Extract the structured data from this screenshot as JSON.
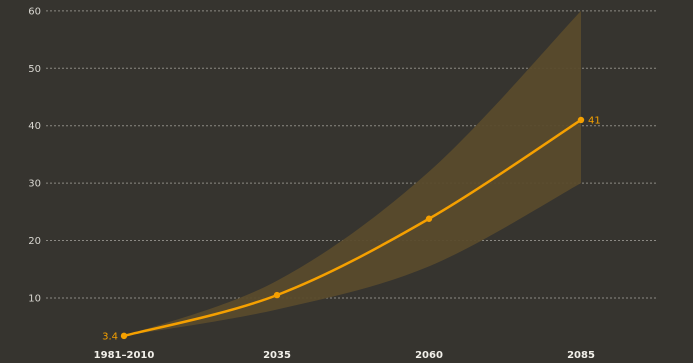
{
  "chart_data": {
    "type": "line",
    "title": "",
    "xlabel": "",
    "ylabel": "",
    "categories": [
      "1981–2010",
      "2035",
      "2060",
      "2085"
    ],
    "ylim": [
      0,
      60
    ],
    "yticks": [
      10,
      20,
      30,
      40,
      50,
      60
    ],
    "grid": true,
    "series": [
      {
        "values": [
          3.4,
          10.5,
          23.8,
          41
        ],
        "band_upper": [
          3.4,
          13,
          32,
          60
        ],
        "band_lower": [
          3.4,
          8,
          15.5,
          30
        ],
        "data_labels": [
          "3.4",
          "",
          "",
          "41"
        ]
      }
    ],
    "colors": {
      "background": "#36342f",
      "line": "#f5a000",
      "band": "#5a4b2c",
      "grid": "#8c8a84"
    }
  }
}
